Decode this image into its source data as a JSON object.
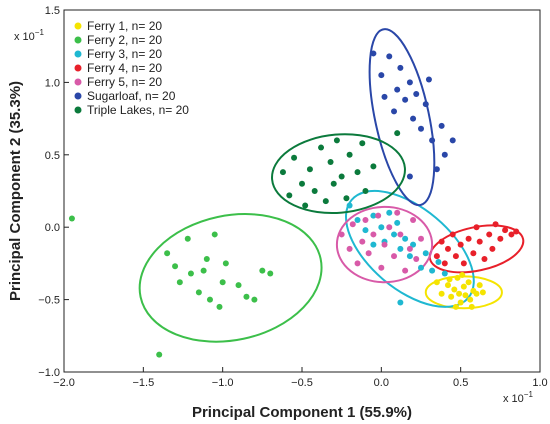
{
  "chart_data": {
    "type": "scatter",
    "title": "",
    "xlabel": "Principal Component 1 (55.9%)",
    "ylabel": "Principal Component 2 (35.3%)",
    "x_multiplier": "x 10",
    "x_multiplier_exp": "−1",
    "y_multiplier": "x 10",
    "y_multiplier_exp": "−1",
    "xlim": [
      -2.0,
      1.0
    ],
    "ylim": [
      -1.0,
      1.5
    ],
    "x_ticks": [
      {
        "value": -2.0,
        "label": "−2.0"
      },
      {
        "value": -1.5,
        "label": "−1.5"
      },
      {
        "value": -1.0,
        "label": "−1.0"
      },
      {
        "value": -0.5,
        "label": "−0.5"
      },
      {
        "value": 0.0,
        "label": "0.0"
      },
      {
        "value": 0.5,
        "label": "0.5"
      },
      {
        "value": 1.0,
        "label": "1.0"
      }
    ],
    "y_ticks": [
      {
        "value": -1.0,
        "label": "−1.0"
      },
      {
        "value": -0.5,
        "label": "−0.5"
      },
      {
        "value": 0.0,
        "label": "0.0"
      },
      {
        "value": 0.5,
        "label": "0.5"
      },
      {
        "value": 1.0,
        "label": "1.0"
      },
      {
        "value": 1.5,
        "label": "1.5"
      }
    ],
    "grid": false,
    "legend_position": "top-left",
    "series": [
      {
        "name": "Ferry 1, n= 20",
        "color": "#f5e400",
        "ellipse": {
          "cx": 0.52,
          "cy": -0.45,
          "rx": 0.24,
          "ry": 0.11,
          "angle": 0
        },
        "points": [
          [
            0.35,
            -0.38
          ],
          [
            0.38,
            -0.46
          ],
          [
            0.42,
            -0.4
          ],
          [
            0.44,
            -0.48
          ],
          [
            0.46,
            -0.43
          ],
          [
            0.48,
            -0.35
          ],
          [
            0.49,
            -0.46
          ],
          [
            0.5,
            -0.52
          ],
          [
            0.52,
            -0.41
          ],
          [
            0.53,
            -0.47
          ],
          [
            0.55,
            -0.38
          ],
          [
            0.56,
            -0.5
          ],
          [
            0.58,
            -0.44
          ],
          [
            0.6,
            -0.46
          ],
          [
            0.62,
            -0.4
          ],
          [
            0.64,
            -0.45
          ],
          [
            0.47,
            -0.55
          ],
          [
            0.51,
            -0.33
          ],
          [
            0.57,
            -0.55
          ],
          [
            0.43,
            -0.36
          ]
        ]
      },
      {
        "name": "Ferry 2, n= 20",
        "color": "#3cbf4a",
        "ellipse": {
          "cx": -0.95,
          "cy": -0.35,
          "rx": 0.58,
          "ry": 0.43,
          "angle": 12
        },
        "points": [
          [
            -1.95,
            0.06
          ],
          [
            -1.4,
            -0.88
          ],
          [
            -1.35,
            -0.18
          ],
          [
            -1.3,
            -0.27
          ],
          [
            -1.27,
            -0.38
          ],
          [
            -1.22,
            -0.08
          ],
          [
            -1.2,
            -0.32
          ],
          [
            -1.15,
            -0.45
          ],
          [
            -1.12,
            -0.3
          ],
          [
            -1.1,
            -0.22
          ],
          [
            -1.08,
            -0.5
          ],
          [
            -1.05,
            -0.05
          ],
          [
            -1.02,
            -0.55
          ],
          [
            -1.0,
            -0.38
          ],
          [
            -0.98,
            -0.25
          ],
          [
            -0.9,
            -0.4
          ],
          [
            -0.85,
            -0.48
          ],
          [
            -0.8,
            -0.5
          ],
          [
            -0.75,
            -0.3
          ],
          [
            -0.7,
            -0.32
          ]
        ]
      },
      {
        "name": "Ferry 3, n= 20",
        "color": "#1fb8d1",
        "ellipse": {
          "cx": 0.18,
          "cy": -0.15,
          "rx": 0.48,
          "ry": 0.28,
          "angle": -40
        },
        "points": [
          [
            -0.2,
            0.15
          ],
          [
            -0.15,
            0.05
          ],
          [
            -0.1,
            -0.02
          ],
          [
            -0.05,
            0.08
          ],
          [
            0.0,
            0.0
          ],
          [
            0.02,
            -0.1
          ],
          [
            0.05,
            0.1
          ],
          [
            0.08,
            -0.05
          ],
          [
            0.1,
            0.03
          ],
          [
            0.12,
            -0.15
          ],
          [
            0.15,
            -0.08
          ],
          [
            0.18,
            -0.2
          ],
          [
            0.2,
            -0.12
          ],
          [
            0.25,
            -0.28
          ],
          [
            0.28,
            -0.18
          ],
          [
            0.32,
            -0.3
          ],
          [
            0.36,
            -0.24
          ],
          [
            0.4,
            -0.32
          ],
          [
            0.12,
            -0.52
          ],
          [
            -0.05,
            -0.12
          ]
        ]
      },
      {
        "name": "Ferry 4, n= 20",
        "color": "#e8202a",
        "ellipse": {
          "cx": 0.6,
          "cy": -0.15,
          "rx": 0.3,
          "ry": 0.15,
          "angle": 12
        },
        "points": [
          [
            0.35,
            -0.2
          ],
          [
            0.38,
            -0.1
          ],
          [
            0.4,
            -0.25
          ],
          [
            0.42,
            -0.15
          ],
          [
            0.45,
            -0.05
          ],
          [
            0.47,
            -0.2
          ],
          [
            0.5,
            -0.12
          ],
          [
            0.52,
            -0.25
          ],
          [
            0.55,
            -0.08
          ],
          [
            0.58,
            -0.18
          ],
          [
            0.6,
            0.0
          ],
          [
            0.62,
            -0.1
          ],
          [
            0.65,
            -0.22
          ],
          [
            0.68,
            -0.05
          ],
          [
            0.7,
            -0.15
          ],
          [
            0.72,
            0.02
          ],
          [
            0.75,
            -0.08
          ],
          [
            0.78,
            -0.02
          ],
          [
            0.82,
            -0.05
          ],
          [
            0.85,
            -0.03
          ]
        ]
      },
      {
        "name": "Ferry 5, n= 20",
        "color": "#d85aa8",
        "ellipse": {
          "cx": 0.02,
          "cy": -0.12,
          "rx": 0.3,
          "ry": 0.26,
          "angle": 0
        },
        "points": [
          [
            -0.25,
            -0.05
          ],
          [
            -0.2,
            -0.15
          ],
          [
            -0.18,
            0.02
          ],
          [
            -0.15,
            -0.25
          ],
          [
            -0.12,
            -0.1
          ],
          [
            -0.1,
            0.05
          ],
          [
            -0.08,
            -0.18
          ],
          [
            -0.05,
            -0.05
          ],
          [
            -0.02,
            0.08
          ],
          [
            0.0,
            -0.28
          ],
          [
            0.02,
            -0.12
          ],
          [
            0.05,
            0.0
          ],
          [
            0.08,
            -0.2
          ],
          [
            0.1,
            0.1
          ],
          [
            0.12,
            -0.05
          ],
          [
            0.15,
            -0.3
          ],
          [
            0.18,
            -0.15
          ],
          [
            0.2,
            0.05
          ],
          [
            0.22,
            -0.22
          ],
          [
            0.25,
            -0.08
          ]
        ]
      },
      {
        "name": "Sugarloaf, n= 20",
        "color": "#2a47a8",
        "ellipse": {
          "cx": 0.13,
          "cy": 0.76,
          "rx": 0.17,
          "ry": 0.62,
          "angle": 12
        },
        "points": [
          [
            -0.05,
            1.2
          ],
          [
            0.0,
            1.05
          ],
          [
            0.02,
            0.9
          ],
          [
            0.05,
            1.18
          ],
          [
            0.08,
            0.8
          ],
          [
            0.1,
            0.95
          ],
          [
            0.12,
            1.1
          ],
          [
            0.15,
            0.88
          ],
          [
            0.18,
            1.0
          ],
          [
            0.2,
            0.75
          ],
          [
            0.22,
            0.92
          ],
          [
            0.25,
            0.68
          ],
          [
            0.28,
            0.85
          ],
          [
            0.3,
            1.02
          ],
          [
            0.32,
            0.6
          ],
          [
            0.35,
            0.4
          ],
          [
            0.38,
            0.7
          ],
          [
            0.4,
            0.5
          ],
          [
            0.45,
            0.6
          ],
          [
            0.18,
            0.35
          ]
        ]
      },
      {
        "name": "Triple Lakes, n= 20",
        "color": "#0b7a3c",
        "ellipse": {
          "cx": -0.27,
          "cy": 0.37,
          "rx": 0.42,
          "ry": 0.27,
          "angle": 5
        },
        "points": [
          [
            -0.62,
            0.38
          ],
          [
            -0.58,
            0.22
          ],
          [
            -0.55,
            0.48
          ],
          [
            -0.5,
            0.3
          ],
          [
            -0.48,
            0.15
          ],
          [
            -0.45,
            0.4
          ],
          [
            -0.42,
            0.25
          ],
          [
            -0.38,
            0.55
          ],
          [
            -0.35,
            0.18
          ],
          [
            -0.32,
            0.45
          ],
          [
            -0.3,
            0.3
          ],
          [
            -0.28,
            0.6
          ],
          [
            -0.25,
            0.35
          ],
          [
            -0.22,
            0.2
          ],
          [
            -0.2,
            0.5
          ],
          [
            -0.15,
            0.38
          ],
          [
            -0.12,
            0.58
          ],
          [
            -0.1,
            0.25
          ],
          [
            -0.05,
            0.42
          ],
          [
            0.1,
            0.65
          ]
        ]
      }
    ]
  }
}
